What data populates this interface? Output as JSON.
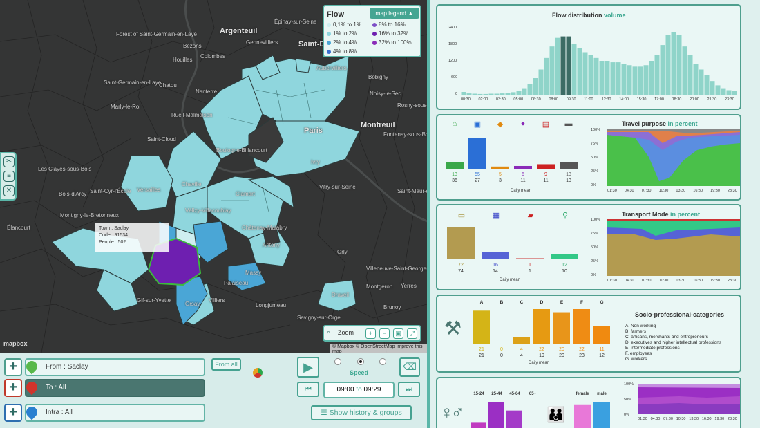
{
  "map": {
    "labels": [
      {
        "t": "Argenteuil",
        "big": true
      },
      {
        "t": "Saint-Denis",
        "big": true
      },
      {
        "t": "Montreuil",
        "big": true
      },
      {
        "t": "Épinay-sur-Seine"
      },
      {
        "t": "Gennevilliers"
      },
      {
        "t": "Colombes"
      },
      {
        "t": "Bezons"
      },
      {
        "t": "Houilles"
      },
      {
        "t": "Chatou"
      },
      {
        "t": "Saint-Germain-en-Laye"
      },
      {
        "t": "Forest of Saint-Germain-en-Laye"
      },
      {
        "t": "Marly-le-Roi"
      },
      {
        "t": "Rueil-Malmaison"
      },
      {
        "t": "Nanterre"
      },
      {
        "t": "Saint-Cloud"
      },
      {
        "t": "Chaville"
      },
      {
        "t": "Versailles"
      },
      {
        "t": "Les Clayes-sous-Bois"
      },
      {
        "t": "Bois-d'Arcy"
      },
      {
        "t": "Saint-Cyr-l'École"
      },
      {
        "t": "Montigny-le-Bretonneux"
      },
      {
        "t": "Élancourt"
      },
      {
        "t": "Bobigny"
      },
      {
        "t": "Aubervilliers"
      },
      {
        "t": "Noisy-le-Sec"
      },
      {
        "t": "Rosny-sous-Bois"
      },
      {
        "t": "Fontenay-sous-Bois"
      },
      {
        "t": "Vitry-sur-Seine"
      },
      {
        "t": "Saint-Maur-des-Fossés"
      },
      {
        "t": "Orly"
      },
      {
        "t": "Villeneuve-Saint-Georges"
      },
      {
        "t": "Yerres"
      },
      {
        "t": "Savigny-sur-Orge"
      },
      {
        "t": "Longjumeau"
      },
      {
        "t": "Palaiseau"
      },
      {
        "t": "Gif-sur-Yvette"
      },
      {
        "t": "Orsay"
      },
      {
        "t": "Massy"
      },
      {
        "t": "Antony"
      },
      {
        "t": "Châtenay-Malabry"
      },
      {
        "t": "Clamart"
      },
      {
        "t": "Vélizy-Villacoublay"
      },
      {
        "t": "Boulogne-Billancourt"
      },
      {
        "t": "Paris"
      },
      {
        "t": "Draveil"
      },
      {
        "t": "Brunoy"
      },
      {
        "t": "Montgeron"
      },
      {
        "t": "Ivry"
      },
      {
        "t": "Villiers"
      }
    ]
  },
  "legend": {
    "title": "Flow",
    "button": "map legend ▲",
    "items": [
      {
        "label": "0,1% to 1%",
        "color": "#cfeef0"
      },
      {
        "label": "1% to 2%",
        "color": "#8ed6df"
      },
      {
        "label": "2% to 4%",
        "color": "#4aa6d6"
      },
      {
        "label": "4% to 8%",
        "color": "#3a6fd0"
      },
      {
        "label": "8% to 16%",
        "color": "#7d4fc6"
      },
      {
        "label": "16% to 32%",
        "color": "#6e1fb0"
      },
      {
        "label": "32% to 100%",
        "color": "#8a2bb8"
      }
    ]
  },
  "tooltip": {
    "town": "Town : Saclay",
    "code": "Code : 91534",
    "people": "People : 502"
  },
  "zoom": {
    "label": "Zoom"
  },
  "attribution": "© Mapbox © OpenStreetMap  Improve this map",
  "mapbox": "mapbox",
  "controls": {
    "from": "From : Saclay",
    "to": "To : All",
    "intra": "Intra : All",
    "from_all": "From all",
    "speed": "Speed",
    "time_from": "09:00",
    "time_to_word": "to",
    "time_to": "09:29",
    "history": "Show history & groups"
  },
  "flow_chart": {
    "title_a": "Flow distribution",
    "title_b": "volume",
    "ymax": "2400",
    "yticks": [
      "2400",
      "1800",
      "1200",
      "600",
      "0"
    ],
    "xticks": [
      "00:30",
      "02:00",
      "03:30",
      "05:00",
      "06:30",
      "08:00",
      "09:30",
      "11:00",
      "12:30",
      "14:00",
      "15:30",
      "17:00",
      "18:30",
      "20:00",
      "21:30",
      "23:30"
    ],
    "bars": [
      120,
      70,
      60,
      50,
      50,
      60,
      60,
      70,
      90,
      110,
      150,
      250,
      400,
      600,
      900,
      1300,
      1700,
      2000,
      2050,
      2050,
      1800,
      1650,
      1500,
      1400,
      1300,
      1200,
      1200,
      1150,
      1150,
      1100,
      1050,
      1000,
      1000,
      1050,
      1200,
      1400,
      1750,
      2100,
      2200,
      2100,
      1700,
      1400,
      1100,
      900,
      700,
      500,
      350,
      250,
      180,
      150
    ],
    "highlight": [
      18,
      19
    ]
  },
  "purpose": {
    "title_a": "Travel purpose",
    "title_b": "in percent",
    "icons": [
      "home-icon",
      "briefcase-icon",
      "graduation-icon",
      "ball-icon",
      "cart-icon",
      "mask-icon"
    ],
    "icon_colors": [
      "#3aa84a",
      "#2b6fd6",
      "#e08a10",
      "#8a2bb8",
      "#cc2222",
      "#555555"
    ],
    "values": [
      13,
      55,
      5,
      6,
      9,
      13
    ],
    "values2": [
      36,
      27,
      3,
      11,
      11,
      13
    ],
    "caption": "Daily mean",
    "xticks": [
      "01:30",
      "04:30",
      "07:30",
      "10:30",
      "13:30",
      "16:30",
      "19:30",
      "23:30"
    ],
    "yticks": [
      "100%",
      "75%",
      "50%",
      "25%",
      "0%"
    ]
  },
  "transport": {
    "title_a": "Transport Mode",
    "title_b": "in percent",
    "icons": [
      "car-icon",
      "train-icon",
      "motorcycle-icon",
      "walk-icon"
    ],
    "icon_colors": [
      "#a08a2a",
      "#3b46c8",
      "#cc2222",
      "#2aa86a"
    ],
    "values": [
      72,
      16,
      1,
      12
    ],
    "values2": [
      74,
      14,
      1,
      10
    ],
    "colors": [
      "#b39b50",
      "#5663d6",
      "#cc3333",
      "#33c887"
    ],
    "caption": "Daily mean",
    "xticks": [
      "01:30",
      "04:30",
      "07:30",
      "10:30",
      "13:30",
      "16:30",
      "19:30",
      "23:30"
    ],
    "yticks": [
      "100%",
      "75%",
      "50%",
      "25%",
      "0%"
    ]
  },
  "socio": {
    "title": "Socio-professional-categories",
    "letters": [
      "A",
      "B",
      "C",
      "D",
      "E",
      "F",
      "G"
    ],
    "values": [
      21,
      0,
      4,
      22,
      20,
      22,
      11
    ],
    "values2": [
      21,
      0,
      4,
      19,
      20,
      23,
      12
    ],
    "colors": [
      "#d4b417",
      "#d4b417",
      "#dca118",
      "#e69a12",
      "#e8951a",
      "#ef8c14",
      "#f08a10"
    ],
    "caption": "Daily mean",
    "legend": [
      "A. Non working",
      "B. farmers",
      "C. artisans, merchants and entrepreneurs",
      "D. executives and higher intellectual professions",
      "E. intermediate professions",
      "F. employees",
      "G. workers"
    ]
  },
  "age": {
    "groups": [
      "15-24",
      "25-44",
      "45-64",
      "65+"
    ],
    "bar_colors": [
      "#c03bc0",
      "#9b2fc4",
      "#a43bc8",
      "#b04ccc"
    ],
    "bar_values": [
      6,
      30,
      20,
      0
    ],
    "gender": [
      "female",
      "male"
    ],
    "gender_colors": [
      "#e878d8",
      "#3aa0e0"
    ],
    "gender_values": [
      35,
      40
    ],
    "yticks": [
      "100%",
      "50%",
      "0%"
    ],
    "xticks": [
      "01:30",
      "04:30",
      "07:30",
      "10:30",
      "13:30",
      "16:30",
      "19:30",
      "23:30"
    ]
  }
}
